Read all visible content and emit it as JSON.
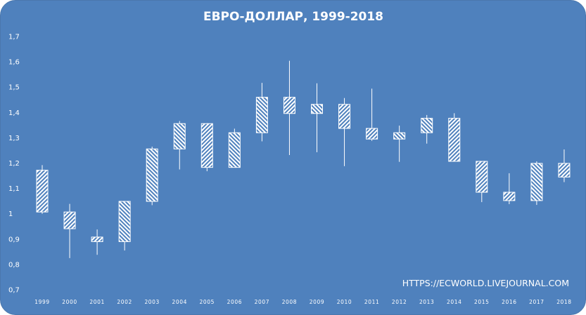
{
  "chart_data": {
    "type": "candlestick",
    "title": "ЕВРО-ДОЛЛАР, 1999-2018",
    "watermark": "HTTPS://ECWORLD.LIVEJOURNAL.COM",
    "ylim": [
      0.7,
      1.7
    ],
    "y_ticks": [
      "0,7",
      "0,8",
      "0,9",
      "1",
      "1,1",
      "1,2",
      "1,3",
      "1,4",
      "1,5",
      "1,6",
      "1,7"
    ],
    "y_tick_values": [
      0.7,
      0.8,
      0.9,
      1.0,
      1.1,
      1.2,
      1.3,
      1.4,
      1.5,
      1.6,
      1.7
    ],
    "grid": false,
    "categories": [
      "1999",
      "2000",
      "2001",
      "2002",
      "2003",
      "2004",
      "2005",
      "2006",
      "2007",
      "2008",
      "2009",
      "2010",
      "2011",
      "2012",
      "2013",
      "2014",
      "2015",
      "2016",
      "2017",
      "2018"
    ],
    "candles": [
      {
        "year": "1999",
        "open": 1.172,
        "close": 1.007,
        "high": 1.192,
        "low": 1.0
      },
      {
        "year": "2000",
        "open": 1.007,
        "close": 0.941,
        "high": 1.039,
        "low": 0.825
      },
      {
        "year": "2001",
        "open": 0.908,
        "close": 0.89,
        "high": 0.938,
        "low": 0.838
      },
      {
        "year": "2002",
        "open": 0.89,
        "close": 1.049,
        "high": 1.049,
        "low": 0.855
      },
      {
        "year": "2003",
        "open": 1.049,
        "close": 1.256,
        "high": 1.265,
        "low": 1.034
      },
      {
        "year": "2004",
        "open": 1.256,
        "close": 1.356,
        "high": 1.366,
        "low": 1.175
      },
      {
        "year": "2005",
        "open": 1.356,
        "close": 1.183,
        "high": 1.358,
        "low": 1.168
      },
      {
        "year": "2006",
        "open": 1.183,
        "close": 1.32,
        "high": 1.336,
        "low": 1.183
      },
      {
        "year": "2007",
        "open": 1.32,
        "close": 1.46,
        "high": 1.517,
        "low": 1.286
      },
      {
        "year": "2008",
        "open": 1.46,
        "close": 1.396,
        "high": 1.604,
        "low": 1.232
      },
      {
        "year": "2009",
        "open": 1.396,
        "close": 1.432,
        "high": 1.515,
        "low": 1.243
      },
      {
        "year": "2010",
        "open": 1.432,
        "close": 1.337,
        "high": 1.457,
        "low": 1.188
      },
      {
        "year": "2011",
        "open": 1.337,
        "close": 1.295,
        "high": 1.494,
        "low": 1.288
      },
      {
        "year": "2012",
        "open": 1.295,
        "close": 1.32,
        "high": 1.348,
        "low": 1.205
      },
      {
        "year": "2013",
        "open": 1.32,
        "close": 1.377,
        "high": 1.39,
        "low": 1.277
      },
      {
        "year": "2014",
        "open": 1.377,
        "close": 1.207,
        "high": 1.397,
        "low": 1.207
      },
      {
        "year": "2015",
        "open": 1.207,
        "close": 1.085,
        "high": 1.207,
        "low": 1.046
      },
      {
        "year": "2016",
        "open": 1.085,
        "close": 1.052,
        "high": 1.16,
        "low": 1.038
      },
      {
        "year": "2017",
        "open": 1.052,
        "close": 1.199,
        "high": 1.207,
        "low": 1.035
      },
      {
        "year": "2018",
        "open": 1.199,
        "close": 1.145,
        "high": 1.254,
        "low": 1.125
      }
    ]
  }
}
